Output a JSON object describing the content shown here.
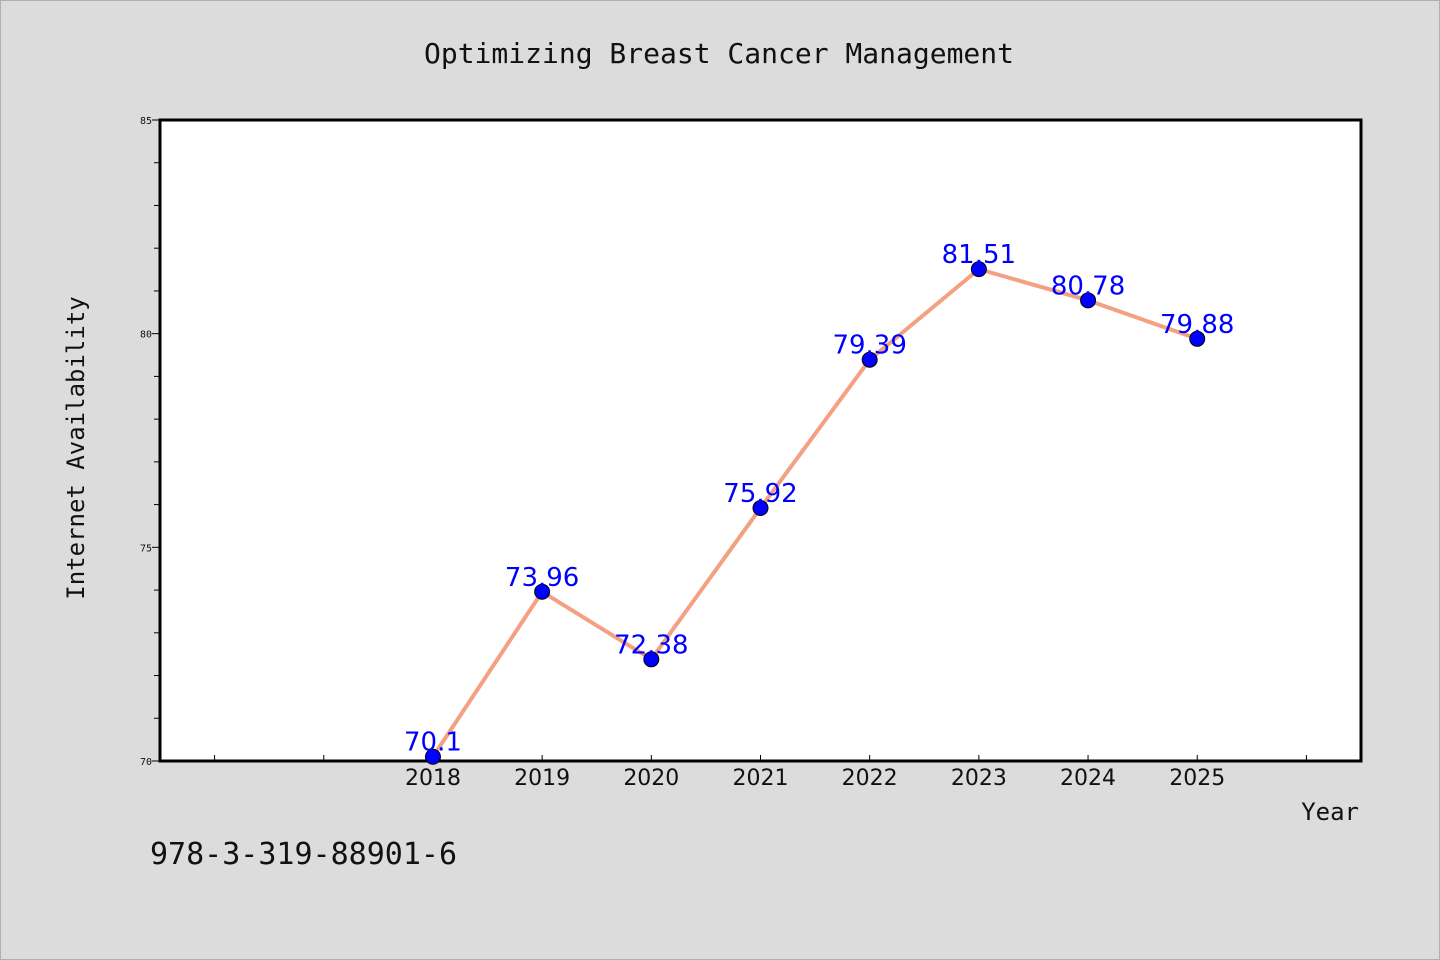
{
  "chart_data": {
    "type": "line",
    "title": "Optimizing Breast Cancer Management",
    "xlabel": "Year",
    "ylabel": "Internet Availability",
    "x": [
      "2018",
      "2019",
      "2020",
      "2021",
      "2022",
      "2023",
      "2024",
      "2025"
    ],
    "x_numeric": [
      2018,
      2019,
      2020,
      2021,
      2022,
      2023,
      2024,
      2025
    ],
    "xlim": [
      2015.5,
      2026.5
    ],
    "ylim": [
      70,
      85
    ],
    "y_ticks": [
      70,
      75,
      80,
      85
    ],
    "y_minor_step": 1,
    "series": [
      {
        "values": [
          70.1,
          73.96,
          72.38,
          75.92,
          79.39,
          81.51,
          80.78,
          79.88
        ],
        "labels": [
          "70.1",
          "73.96",
          "72.38",
          "75.92",
          "79.39",
          "81.51",
          "80.78",
          "79.88"
        ],
        "line_color": "#f4a082",
        "marker_color": "#0000ff",
        "label_color": "#0000ff"
      }
    ],
    "grid": false,
    "plot_background": "#ffffff",
    "figure_background": "#dcdcdc"
  },
  "footer": {
    "isbn": "978-3-319-88901-6"
  }
}
